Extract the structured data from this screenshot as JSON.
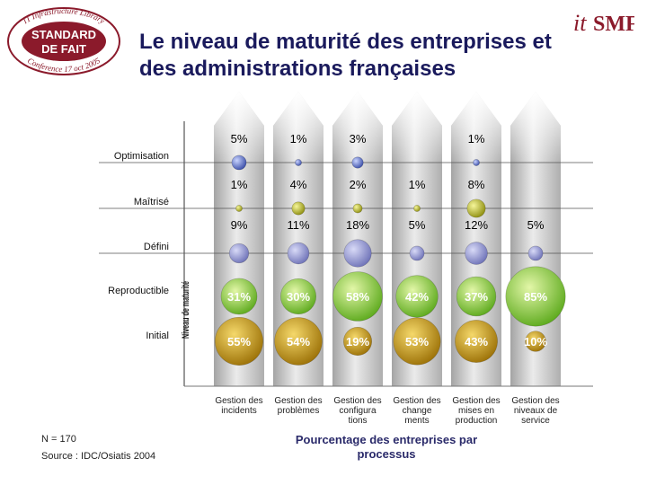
{
  "header": {
    "title_line1": "Le niveau de maturité des entreprises et",
    "title_line2": "des administrations françaises"
  },
  "logo_left": {
    "arc_text": "IT Infrastructure Library",
    "line1": "STANDARD",
    "line2": "DE FAIT",
    "bottom_text": "Conference 17 oct 2005",
    "color": "#8b1a2b"
  },
  "logo_right": {
    "text_it": "it",
    "text_smf": "SMF",
    "color": "#8b1a2b"
  },
  "footer": {
    "sample": "N = 170",
    "source": "Source : IDC/Osiatis 2004"
  },
  "colors": {
    "blue": "#6b7fc9",
    "purple": "#8a8fd0",
    "green": "#7dc42a",
    "gold": "#c99a0a",
    "small_yellow": "#c8c820"
  },
  "chart_data": {
    "type": "bubble",
    "xlabel": "Pourcentage des entreprises par processus",
    "ylabel": "Niveau de maturité",
    "levels": [
      "Optimisation",
      "Maîtrisé",
      "Défini",
      "Reproductible",
      "Initial"
    ],
    "categories": [
      "Gestion des incidents",
      "Gestion des problèmes",
      "Gestion des configurations",
      "Gestion des changements",
      "Gestion des mises en production",
      "Gestion des niveaux de service"
    ],
    "category_labels": [
      [
        "Gestion des",
        "incidents"
      ],
      [
        "Gestion des",
        "problèmes"
      ],
      [
        "Gestion des",
        "configura",
        "tions"
      ],
      [
        "Gestion des",
        "change",
        "ments"
      ],
      [
        "Gestion des",
        "mises en",
        "production"
      ],
      [
        "Gestion des",
        "niveaux de",
        "service"
      ]
    ],
    "series": [
      {
        "name": "Optimisation",
        "values": [
          5,
          1,
          3,
          null,
          1,
          null
        ],
        "labels": [
          "5%",
          "1%",
          "3%",
          null,
          "1%",
          null
        ]
      },
      {
        "name": "Maîtrisé",
        "values": [
          1,
          4,
          2,
          1,
          8,
          null
        ],
        "labels": [
          "1%",
          "4%",
          "2%",
          "1%",
          "8%",
          null
        ]
      },
      {
        "name": "Défini",
        "values": [
          9,
          11,
          18,
          5,
          12,
          5
        ],
        "labels": [
          "9%",
          "11%",
          "18%",
          "5%",
          "12%",
          "5%"
        ]
      },
      {
        "name": "Reproductible",
        "values": [
          31,
          30,
          58,
          42,
          37,
          85
        ],
        "labels": [
          "31%",
          "30%",
          "58%",
          "42%",
          "37%",
          "85%"
        ]
      },
      {
        "name": "Initial",
        "values": [
          55,
          54,
          19,
          53,
          43,
          10
        ],
        "labels": [
          "55%",
          "54%",
          "19%",
          "53%",
          "43%",
          "10%"
        ]
      }
    ]
  }
}
